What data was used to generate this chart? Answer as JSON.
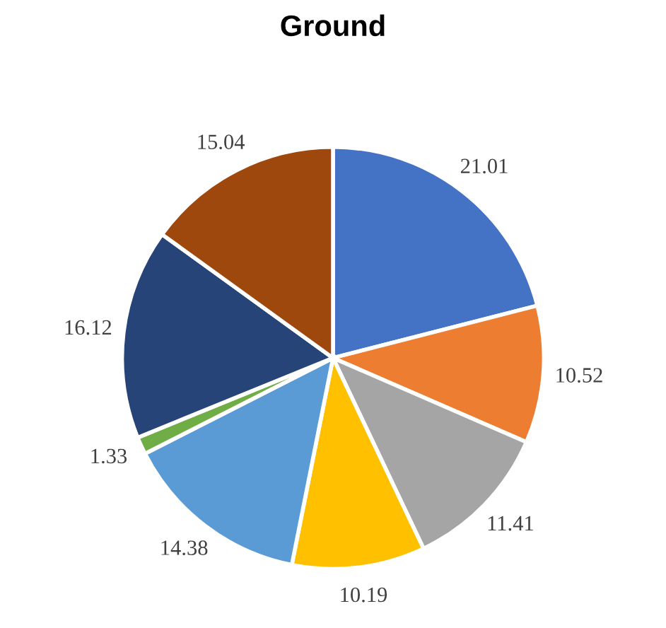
{
  "chart_data": {
    "type": "pie",
    "title": "Ground",
    "categories": [
      null,
      null,
      null,
      null,
      null,
      null,
      null,
      null
    ],
    "values": [
      21.01,
      10.52,
      11.41,
      10.19,
      14.38,
      1.33,
      16.12,
      15.04
    ],
    "colors": [
      "#4472c4",
      "#ed7d31",
      "#a5a5a5",
      "#ffc000",
      "#5b9bd5",
      "#70ad47",
      "#264478",
      "#9e480e"
    ],
    "data_labels": true
  }
}
